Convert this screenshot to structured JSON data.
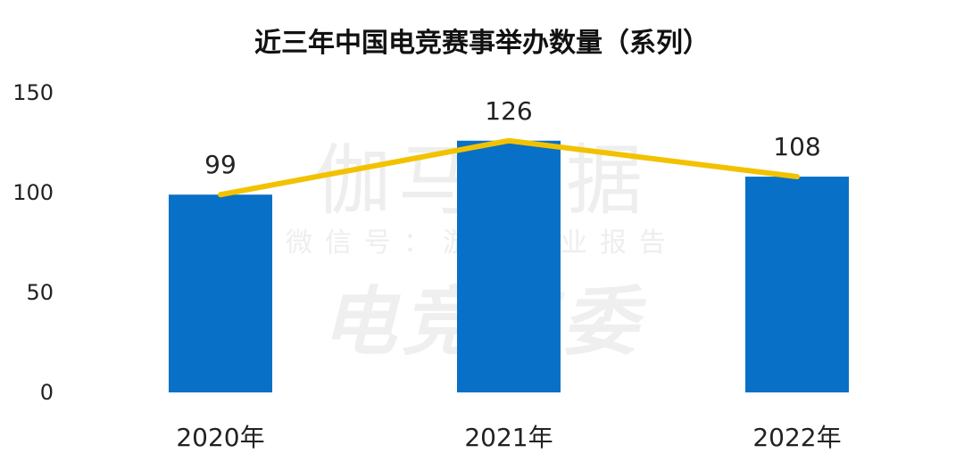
{
  "chart_data": {
    "type": "bar",
    "title": "近三年中国电竞赛事举办数量（系列）",
    "categories": [
      "2020年",
      "2021年",
      "2022年"
    ],
    "series": [
      {
        "values": [
          99,
          126,
          108
        ],
        "color": "#0870C6"
      }
    ],
    "line_overlay": {
      "values": [
        99,
        126,
        108
      ],
      "color": "#F2C200"
    },
    "ylim": [
      0,
      150
    ],
    "yticks": [
      0,
      50,
      100,
      150
    ],
    "data_labels": [
      "99",
      "126",
      "108"
    ],
    "grid": false,
    "legend": "none"
  },
  "watermark": {
    "line1": "伽马数据",
    "line2": "微信号：游戏产业报告",
    "line3": "电竞工委"
  }
}
